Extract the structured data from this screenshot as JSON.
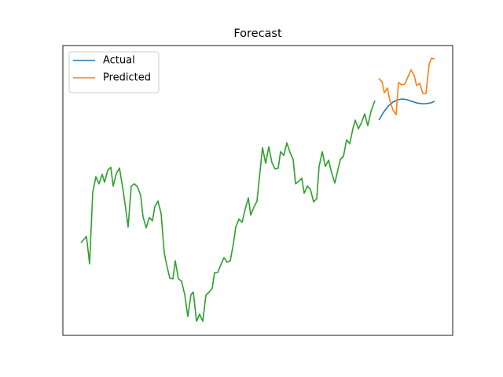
{
  "chart_data": {
    "type": "line",
    "title": "Forecast",
    "xlim": [
      -23,
      473
    ],
    "ylim": [
      0,
      369
    ],
    "legend": "upper left",
    "series": [
      {
        "color": "#2ca02c",
        "x": [
          0,
          7,
          11,
          15,
          19,
          23,
          27,
          30,
          34,
          38,
          41,
          45,
          49,
          53,
          57,
          60,
          64,
          68,
          72,
          76,
          79,
          83,
          87,
          91,
          94,
          98,
          102,
          106,
          109,
          113,
          117,
          120,
          124,
          128,
          132,
          136,
          140,
          143,
          147,
          151,
          155,
          159,
          163,
          167,
          170,
          174,
          178,
          182,
          186,
          190,
          194,
          197,
          201,
          205,
          209,
          213,
          216,
          220,
          224,
          228,
          231,
          235,
          239,
          243,
          247,
          251,
          254,
          258,
          262,
          266,
          270,
          273,
          277,
          281,
          284,
          288,
          292,
          296,
          300,
          303,
          307,
          311,
          315,
          319,
          323,
          327,
          330,
          334,
          338,
          342,
          346,
          349,
          353,
          357,
          361,
          365,
          369,
          374
        ],
        "values": [
          118,
          126,
          91,
          182,
          202,
          193,
          205,
          195,
          210,
          214,
          190,
          206,
          213,
          189,
          161,
          138,
          190,
          193,
          189,
          178,
          151,
          137,
          150,
          146,
          164,
          171,
          155,
          105,
          90,
          73,
          72,
          95,
          72,
          69,
          52,
          24,
          52,
          55,
          18,
          27,
          18,
          51,
          55,
          60,
          80,
          80,
          90,
          99,
          93,
          95,
          117,
          138,
          148,
          144,
          161,
          175,
          153,
          163,
          171,
          210,
          239,
          219,
          240,
          220,
          212,
          213,
          234,
          229,
          245,
          233,
          224,
          193,
          196,
          200,
          181,
          190,
          186,
          170,
          174,
          215,
          234,
          215,
          223,
          207,
          194,
          211,
          224,
          228,
          249,
          244,
          263,
          274,
          263,
          271,
          282,
          267,
          285,
          299
        ]
      },
      {
        "name": "Actual",
        "color": "#1f77b4",
        "x": [
          379,
          385,
          391,
          397,
          403,
          409,
          415,
          421,
          427,
          433,
          439,
          445,
          450
        ],
        "values": [
          274,
          284,
          292,
          297,
          300,
          301,
          300,
          298,
          296,
          295,
          295,
          296,
          298
        ]
      },
      {
        "name": "Predicted",
        "color": "#ff7f0e",
        "x": [
          379,
          383,
          386,
          390,
          393,
          397,
          401,
          404,
          408,
          412,
          416,
          420,
          424,
          427,
          431,
          435,
          439,
          443,
          446,
          450
        ],
        "values": [
          327,
          323,
          309,
          315,
          299,
          287,
          281,
          322,
          319,
          320,
          329,
          338,
          331,
          318,
          321,
          308,
          308,
          345,
          353,
          352
        ]
      }
    ]
  }
}
